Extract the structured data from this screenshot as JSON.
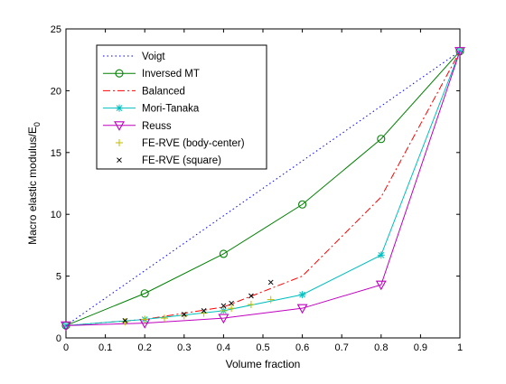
{
  "chart_data": {
    "type": "line",
    "title": "",
    "xlabel": "Volume fraction",
    "ylabel_main": "Macro elastic modulus/E",
    "ylabel_sub": "0",
    "xlim": [
      0,
      1
    ],
    "ylim": [
      0,
      25
    ],
    "xticks": [
      0,
      0.1,
      0.2,
      0.3,
      0.4,
      0.5,
      0.6,
      0.7,
      0.8,
      0.9,
      1
    ],
    "xtick_labels": [
      "0",
      "0.1",
      "0.2",
      "0.3",
      "0.4",
      "0.5",
      "0.6",
      "0.7",
      "0.8",
      "0.9",
      "1"
    ],
    "yticks": [
      0,
      5,
      10,
      15,
      20,
      25
    ],
    "ytick_labels": [
      "0",
      "5",
      "10",
      "15",
      "20",
      "25"
    ],
    "grid": false,
    "legend_position": "top-left",
    "series": [
      {
        "name": "Voigt",
        "color": "#0000ff",
        "line": "dotted",
        "marker": "none",
        "x": [
          0,
          1
        ],
        "y": [
          1,
          23.2
        ]
      },
      {
        "name": "Inversed MT",
        "color": "#008000",
        "line": "solid",
        "marker": "circle",
        "x": [
          0,
          0.2,
          0.4,
          0.6,
          0.8,
          1
        ],
        "y": [
          1,
          3.6,
          6.8,
          10.8,
          16.1,
          23.2
        ]
      },
      {
        "name": "Balanced",
        "color": "#ff0000",
        "line": "dashdot",
        "marker": "none",
        "x": [
          0,
          0.2,
          0.4,
          0.6,
          0.8,
          1
        ],
        "y": [
          1,
          1.5,
          2.5,
          5.0,
          11.4,
          23.2
        ]
      },
      {
        "name": "Mori-Tanaka",
        "color": "#00bfbf",
        "line": "solid",
        "marker": "asterisk",
        "x": [
          0,
          0.2,
          0.4,
          0.6,
          0.8,
          1
        ],
        "y": [
          1,
          1.5,
          2.2,
          3.5,
          6.7,
          23.2
        ]
      },
      {
        "name": "Reuss",
        "color": "#bf00bf",
        "line": "solid",
        "marker": "triangle-down",
        "x": [
          0,
          0.2,
          0.4,
          0.6,
          0.8,
          1
        ],
        "y": [
          1,
          1.2,
          1.6,
          2.4,
          4.3,
          23.2
        ]
      },
      {
        "name": "FE-RVE (body-center)",
        "color": "#bfbf00",
        "line": "none",
        "marker": "plus",
        "x": [
          0.15,
          0.2,
          0.25,
          0.3,
          0.35,
          0.4,
          0.42,
          0.47,
          0.52
        ],
        "y": [
          1.3,
          1.5,
          1.6,
          1.8,
          2.0,
          2.2,
          2.4,
          2.7,
          3.1
        ]
      },
      {
        "name": "FE-RVE (square)",
        "color": "#000000",
        "line": "none",
        "marker": "x",
        "x": [
          0.15,
          0.3,
          0.35,
          0.4,
          0.42,
          0.47,
          0.52
        ],
        "y": [
          1.4,
          1.9,
          2.2,
          2.6,
          2.8,
          3.4,
          4.5
        ]
      }
    ]
  }
}
